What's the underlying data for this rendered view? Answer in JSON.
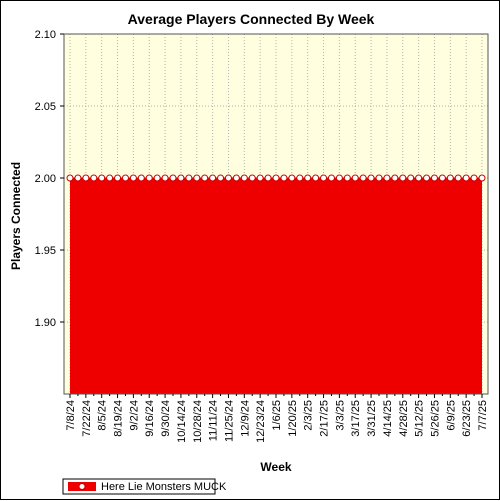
{
  "chart_data": {
    "type": "area",
    "title": "Average Players Connected By Week",
    "xlabel": "Week",
    "ylabel": "Players Connected",
    "ylim": [
      1.85,
      2.1
    ],
    "yticks": [
      1.9,
      1.95,
      2.0,
      2.05,
      2.1
    ],
    "ytick_labels": [
      "1.90",
      "1.95",
      "2.00",
      "2.05",
      "2.10"
    ],
    "x_tick_labels": [
      "7/8/24",
      "7/22/24",
      "8/5/24",
      "8/19/24",
      "9/2/24",
      "9/16/24",
      "9/30/24",
      "10/14/24",
      "10/28/24",
      "11/11/24",
      "11/25/24",
      "12/9/24",
      "12/23/24",
      "1/6/25",
      "1/20/25",
      "2/3/25",
      "2/17/25",
      "3/3/25",
      "3/17/25",
      "3/31/25",
      "4/14/25",
      "4/28/25",
      "5/12/25",
      "5/26/25",
      "6/9/25",
      "6/23/25",
      "7/7/25"
    ],
    "x": [
      "7/8/24",
      "7/15/24",
      "7/22/24",
      "7/29/24",
      "8/5/24",
      "8/12/24",
      "8/19/24",
      "8/26/24",
      "9/2/24",
      "9/9/24",
      "9/16/24",
      "9/23/24",
      "9/30/24",
      "10/7/24",
      "10/14/24",
      "10/21/24",
      "10/28/24",
      "11/4/24",
      "11/11/24",
      "11/18/24",
      "11/25/24",
      "12/2/24",
      "12/9/24",
      "12/16/24",
      "12/23/24",
      "12/30/24",
      "1/6/25",
      "1/13/25",
      "1/20/25",
      "1/27/25",
      "2/3/25",
      "2/10/25",
      "2/17/25",
      "2/24/25",
      "3/3/25",
      "3/10/25",
      "3/17/25",
      "3/24/25",
      "3/31/25",
      "4/7/25",
      "4/14/25",
      "4/21/25",
      "4/28/25",
      "5/5/25",
      "5/12/25",
      "5/19/25",
      "5/26/25",
      "6/2/25",
      "6/9/25",
      "6/16/25",
      "6/23/25",
      "6/30/25",
      "7/7/25"
    ],
    "series": [
      {
        "name": "Here Lie Monsters MUCK",
        "color": "#ee0000",
        "values": [
          2,
          2,
          2,
          2,
          2,
          2,
          2,
          2,
          2,
          2,
          2,
          2,
          2,
          2,
          2,
          2,
          2,
          2,
          2,
          2,
          2,
          2,
          2,
          2,
          2,
          2,
          2,
          2,
          2,
          2,
          2,
          2,
          2,
          2,
          2,
          2,
          2,
          2,
          2,
          2,
          2,
          2,
          2,
          2,
          2,
          2,
          2,
          2,
          2,
          2,
          2,
          2,
          2
        ]
      }
    ],
    "grid": true,
    "legend_position": "bottom-left",
    "plot_background": "#ffffe0"
  }
}
